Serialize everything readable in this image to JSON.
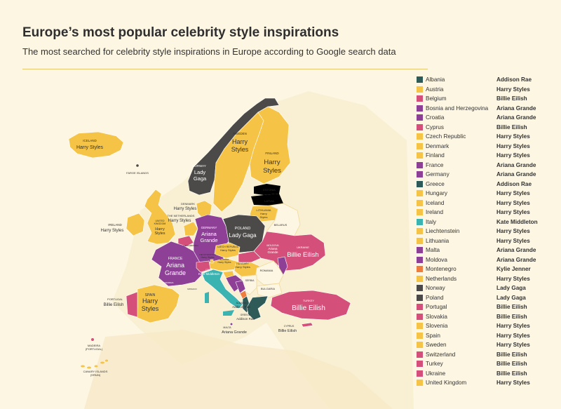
{
  "title": "Europe’s most popular celebrity style inspirations",
  "subtitle": "The most searched for celebrity style inspirations in Europe according to Google search data",
  "colors": {
    "Harry Styles": "#f5c345",
    "Billie Eilish": "#d4507a",
    "Ariana Grande": "#8e3f96",
    "Addison Rae": "#2e5a57",
    "Lady Gaga": "#4b4a48",
    "Kate Middleton": "#3bb3b0",
    "Kylie Jenner": "#ef7d3d"
  },
  "legend": [
    {
      "country": "Albania",
      "celebrity": "Addison Rae"
    },
    {
      "country": "Austria",
      "celebrity": "Harry Styles"
    },
    {
      "country": "Belgium",
      "celebrity": "Billie Eilish"
    },
    {
      "country": "Bosnia and Herzegovina",
      "celebrity": "Ariana Grande"
    },
    {
      "country": "Croatia",
      "celebrity": "Ariana Grande"
    },
    {
      "country": "Cyprus",
      "celebrity": "Billie Eilish"
    },
    {
      "country": "Czech Republic",
      "celebrity": "Harry Styles"
    },
    {
      "country": "Denmark",
      "celebrity": "Harry Styles"
    },
    {
      "country": "Finland",
      "celebrity": "Harry Styles"
    },
    {
      "country": "France",
      "celebrity": "Ariana Grande"
    },
    {
      "country": "Germany",
      "celebrity": "Ariana Grande"
    },
    {
      "country": "Greece",
      "celebrity": "Addison Rae"
    },
    {
      "country": "Hungary",
      "celebrity": "Harry Styles"
    },
    {
      "country": "Iceland",
      "celebrity": "Harry Styles"
    },
    {
      "country": "Ireland",
      "celebrity": "Harry Styles"
    },
    {
      "country": "Italy",
      "celebrity": "Kate Middleton"
    },
    {
      "country": "Liechtenstein",
      "celebrity": "Harry Styles"
    },
    {
      "country": "Lithuania",
      "celebrity": "Harry Styles"
    },
    {
      "country": "Malta",
      "celebrity": "Ariana Grande"
    },
    {
      "country": "Moldova",
      "celebrity": "Ariana Grande"
    },
    {
      "country": "Montenegro",
      "celebrity": "Kylie Jenner"
    },
    {
      "country": "Netherlands",
      "celebrity": "Harry Styles"
    },
    {
      "country": "Norway",
      "celebrity": "Lady Gaga"
    },
    {
      "country": "Poland",
      "celebrity": "Lady Gaga"
    },
    {
      "country": "Portugal",
      "celebrity": "Billie Eilish"
    },
    {
      "country": "Slovakia",
      "celebrity": "Billie Eilish"
    },
    {
      "country": "Slovenia",
      "celebrity": "Harry Styles"
    },
    {
      "country": "Spain",
      "celebrity": "Harry Styles"
    },
    {
      "country": "Sweden",
      "celebrity": "Harry Styles"
    },
    {
      "country": "Switzerland",
      "celebrity": "Billie Eilish"
    },
    {
      "country": "Turkey",
      "celebrity": "Billie Eilish"
    },
    {
      "country": "Ukraine",
      "celebrity": "Billie Eilish"
    },
    {
      "country": "United Kingdom",
      "celebrity": "Harry Styles"
    }
  ],
  "map_labels": {
    "iceland": {
      "name": "ICELAND",
      "celebrity": "Harry Styles"
    },
    "norway": {
      "name": "NORWAY",
      "celebrity_line1": "Lady",
      "celebrity_line2": "Gaga"
    },
    "sweden": {
      "name": "SWEDEN",
      "celebrity_line1": "Harry",
      "celebrity_line2": "Styles"
    },
    "finland": {
      "name": "FINLAND",
      "celebrity_line1": "Harry",
      "celebrity_line2": "Styles"
    },
    "faroe": {
      "name": "FAROE ISLANDS"
    },
    "estonia": {
      "name": "ESTONIA"
    },
    "latvia": {
      "name": "LATVIA"
    },
    "lithuania": {
      "name": "LITHUANIA",
      "celebrity_line1": "Harry",
      "celebrity_line2": "Styles"
    },
    "belarus": {
      "name": "BELARUS"
    },
    "denmark": {
      "name": "DENMARK",
      "celebrity": "Harry Styles"
    },
    "netherlands": {
      "name": "THE NETHERLANDS",
      "celebrity": "Harry Styles"
    },
    "ireland": {
      "name": "IRELAND",
      "celebrity": "Harry Styles"
    },
    "uk": {
      "name_line1": "UNITED",
      "name_line2": "KINGDOM",
      "celebrity_line1": "Harry",
      "celebrity_line2": "Styles"
    },
    "germany": {
      "name": "GERMANY",
      "celebrity_line1": "Ariana",
      "celebrity_line2": "Grande"
    },
    "poland": {
      "name": "POLAND",
      "celebrity": "Lady Gaga"
    },
    "france": {
      "name": "FRANCE",
      "celebrity_line1": "Ariana",
      "celebrity_line2": "Grande"
    },
    "ukraine": {
      "name": "UKRAINE",
      "celebrity": "Billie Eilish"
    },
    "moldova": {
      "name": "MOLDOVA",
      "celebrity_line1": "Ariana",
      "celebrity_line2": "Grande"
    },
    "czech": {
      "name": "CZECH REPUBLIC",
      "celebrity": "Harry Styles"
    },
    "austria": {
      "name": "AUSTRIA",
      "celebrity": "Harry Styles"
    },
    "hungary": {
      "name": "HUNGARY",
      "celebrity": "Harry Styles"
    },
    "liechtenstein": {
      "name": "LIECHTENSTEIN",
      "celebrity": "Harry Styles"
    },
    "luxembourg": {
      "name": "LUXEMBOURG"
    },
    "italy": {
      "name": "ITALY",
      "celebrity": "Kate Middleton"
    },
    "romania": {
      "name": "ROMANIA"
    },
    "serbia": {
      "name": "SERBIA"
    },
    "bulgaria": {
      "name": "BULGARIA"
    },
    "monaco": {
      "name": "MONACO"
    },
    "andorra": {
      "name": "ANDORRA"
    },
    "spain": {
      "name": "SPAIN",
      "celebrity_line1": "Harry",
      "celebrity_line2": "Styles"
    },
    "portugal": {
      "name": "PORTUGAL",
      "celebrity": "Billie Eilish"
    },
    "albania": {
      "name": "ALBANIA",
      "celebrity": "Addison Rae"
    },
    "greece": {
      "name": "GREECE",
      "celebrity": "Addison Rae"
    },
    "turkey": {
      "name": "TURKEY",
      "celebrity": "Billie Eilish"
    },
    "cyprus": {
      "name": "CYPRUS",
      "celebrity": "Billie Eilish"
    },
    "malta": {
      "name": "MALTA",
      "celebrity": "Ariana Grande"
    },
    "madeira": {
      "name_line1": "MADEIRA",
      "name_line2": "(PORTUGAL)"
    },
    "canary": {
      "name_line1": "CANARY ISLANDS",
      "name_line2": "(SPAIN)"
    }
  }
}
